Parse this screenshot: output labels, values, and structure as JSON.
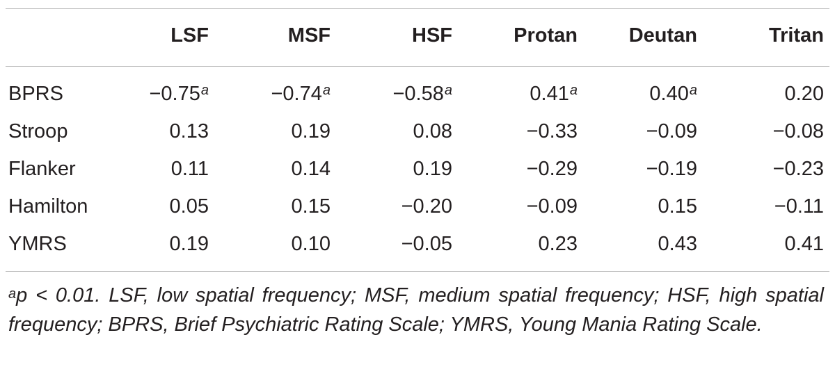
{
  "table": {
    "columns": [
      "",
      "LSF",
      "MSF",
      "HSF",
      "Protan",
      "Deutan",
      "Tritan"
    ],
    "rows": [
      {
        "label": "BPRS",
        "cells": [
          {
            "value": "−0.75",
            "sup": "a"
          },
          {
            "value": "−0.74",
            "sup": "a"
          },
          {
            "value": "−0.58",
            "sup": "a"
          },
          {
            "value": "0.41",
            "sup": "a"
          },
          {
            "value": "0.40",
            "sup": "a"
          },
          {
            "value": "0.20",
            "sup": ""
          }
        ]
      },
      {
        "label": "Stroop",
        "cells": [
          {
            "value": "0.13",
            "sup": ""
          },
          {
            "value": "0.19",
            "sup": ""
          },
          {
            "value": "0.08",
            "sup": ""
          },
          {
            "value": "−0.33",
            "sup": ""
          },
          {
            "value": "−0.09",
            "sup": ""
          },
          {
            "value": "−0.08",
            "sup": ""
          }
        ]
      },
      {
        "label": "Flanker",
        "cells": [
          {
            "value": "0.11",
            "sup": ""
          },
          {
            "value": "0.14",
            "sup": ""
          },
          {
            "value": "0.19",
            "sup": ""
          },
          {
            "value": "−0.29",
            "sup": ""
          },
          {
            "value": "−0.19",
            "sup": ""
          },
          {
            "value": "−0.23",
            "sup": ""
          }
        ]
      },
      {
        "label": "Hamilton",
        "cells": [
          {
            "value": "0.05",
            "sup": ""
          },
          {
            "value": "0.15",
            "sup": ""
          },
          {
            "value": "−0.20",
            "sup": ""
          },
          {
            "value": "−0.09",
            "sup": ""
          },
          {
            "value": "0.15",
            "sup": ""
          },
          {
            "value": "−0.11",
            "sup": ""
          }
        ]
      },
      {
        "label": "YMRS",
        "cells": [
          {
            "value": "0.19",
            "sup": ""
          },
          {
            "value": "0.10",
            "sup": ""
          },
          {
            "value": "−0.05",
            "sup": ""
          },
          {
            "value": "0.23",
            "sup": ""
          },
          {
            "value": "0.43",
            "sup": ""
          },
          {
            "value": "0.41",
            "sup": ""
          }
        ]
      }
    ]
  },
  "footnote": {
    "mark": "a",
    "text": "p < 0.01. LSF, low spatial frequency; MSF, medium spatial frequency; HSF, high spatial frequency; BPRS, Brief Psychiatric Rating Scale; YMRS, Young Mania Rating Scale."
  }
}
